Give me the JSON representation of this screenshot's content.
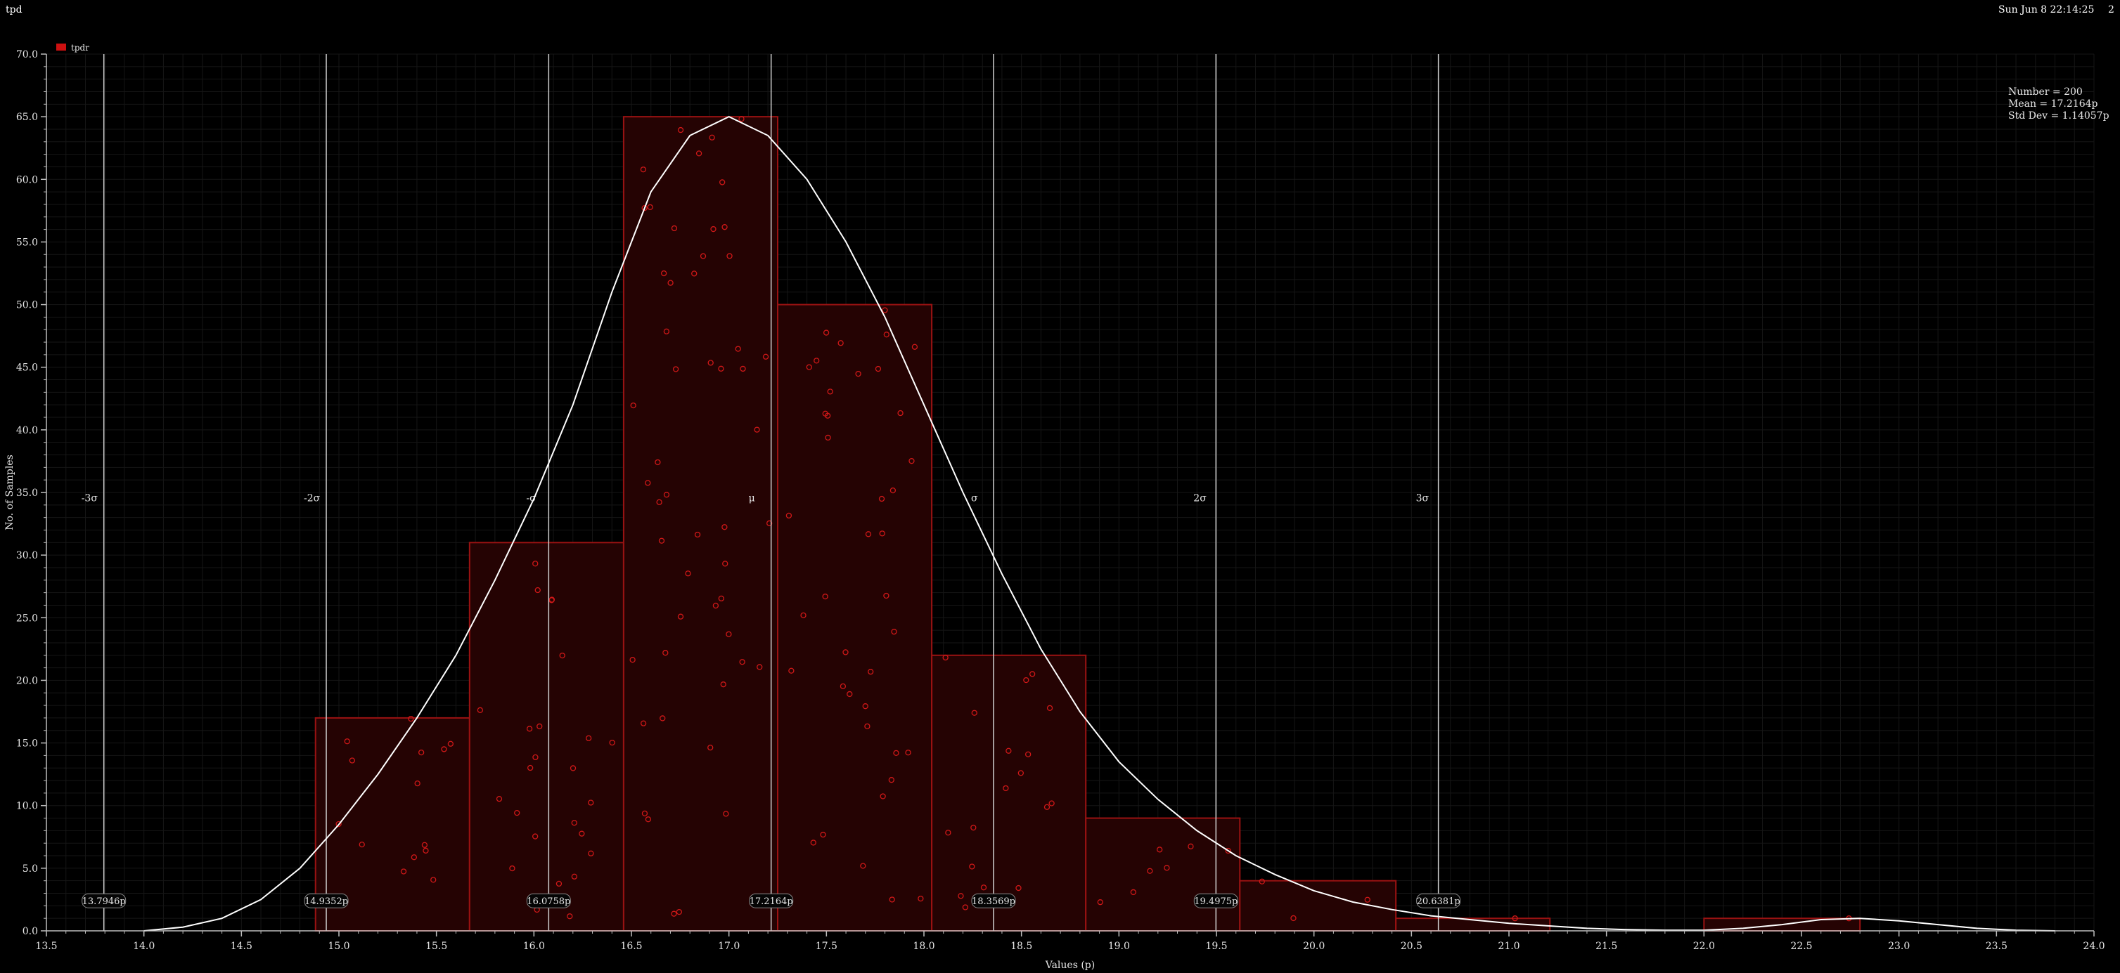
{
  "window": {
    "title": "tpd",
    "datetime": "Sun Jun 8 22:14:25",
    "page_number": "2"
  },
  "legend": {
    "label": "tpdr",
    "color": "#cc1010"
  },
  "stats": {
    "number": "Number = 200",
    "mean": "Mean = 17.2164p",
    "std_dev": "Std Dev = 1.14057p"
  },
  "chart_data": {
    "type": "bar",
    "xlabel": "Values (p)",
    "ylabel": "No. of Samples",
    "xlim": [
      13.5,
      24.0
    ],
    "ylim": [
      0,
      70
    ],
    "x_ticks": [
      "13.5",
      "14.0",
      "14.5",
      "15.0",
      "15.5",
      "16.0",
      "16.5",
      "17.0",
      "17.5",
      "18.0",
      "18.5",
      "19.0",
      "19.5",
      "20.0",
      "20.5",
      "21.0",
      "21.5",
      "22.0",
      "22.5",
      "23.0",
      "23.5",
      "24.0"
    ],
    "y_ticks": [
      "0.0",
      "5.0",
      "10.0",
      "15.0",
      "20.0",
      "25.0",
      "30.0",
      "35.0",
      "40.0",
      "45.0",
      "50.0",
      "55.0",
      "60.0",
      "65.0",
      "70.0"
    ],
    "bins": [
      {
        "x0": 14.88,
        "x1": 15.67,
        "count": 17
      },
      {
        "x0": 15.67,
        "x1": 16.46,
        "count": 31
      },
      {
        "x0": 16.46,
        "x1": 17.25,
        "count": 65
      },
      {
        "x0": 17.25,
        "x1": 18.04,
        "count": 50
      },
      {
        "x0": 18.04,
        "x1": 18.83,
        "count": 22
      },
      {
        "x0": 18.83,
        "x1": 19.62,
        "count": 9
      },
      {
        "x0": 19.62,
        "x1": 20.42,
        "count": 4
      },
      {
        "x0": 20.42,
        "x1": 21.21,
        "count": 1
      },
      {
        "x0": 22.0,
        "x1": 22.8,
        "count": 1
      }
    ],
    "sigma_lines": [
      {
        "label": "-3σ",
        "x": 13.7946,
        "value_label": "13.7946p"
      },
      {
        "label": "-2σ",
        "x": 14.9352,
        "value_label": "14.9352p"
      },
      {
        "label": "-σ",
        "x": 16.0758,
        "value_label": "16.0758p"
      },
      {
        "label": "μ",
        "x": 17.2164,
        "value_label": "17.2164p"
      },
      {
        "label": "σ",
        "x": 18.3569,
        "value_label": "18.3569p"
      },
      {
        "label": "2σ",
        "x": 19.4975,
        "value_label": "19.4975p"
      },
      {
        "label": "3σ",
        "x": 20.6381,
        "value_label": "20.6381p"
      }
    ],
    "density_curve": {
      "x": [
        14.0,
        14.2,
        14.4,
        14.6,
        14.8,
        15.0,
        15.2,
        15.4,
        15.6,
        15.8,
        16.0,
        16.2,
        16.4,
        16.6,
        16.8,
        17.0,
        17.2,
        17.4,
        17.6,
        17.8,
        18.0,
        18.2,
        18.4,
        18.6,
        18.8,
        19.0,
        19.2,
        19.4,
        19.6,
        19.8,
        20.0,
        20.2,
        20.4,
        20.6,
        20.8,
        21.0,
        21.2,
        21.4,
        21.6,
        21.8,
        22.0,
        22.2,
        22.4,
        22.6,
        22.8,
        23.0,
        23.2,
        23.4,
        23.6,
        23.8
      ],
      "y": [
        0.0,
        0.3,
        1.0,
        2.5,
        5.0,
        8.5,
        12.5,
        17.0,
        22.0,
        28.0,
        34.5,
        42.0,
        51.0,
        59.0,
        63.5,
        65.0,
        63.5,
        60.0,
        55.0,
        49.0,
        42.0,
        35.0,
        28.5,
        22.5,
        17.5,
        13.5,
        10.5,
        8.0,
        6.0,
        4.5,
        3.2,
        2.3,
        1.7,
        1.2,
        0.9,
        0.6,
        0.4,
        0.2,
        0.1,
        0.05,
        0.05,
        0.2,
        0.5,
        0.9,
        1.0,
        0.8,
        0.5,
        0.2,
        0.05,
        0.0
      ]
    }
  }
}
